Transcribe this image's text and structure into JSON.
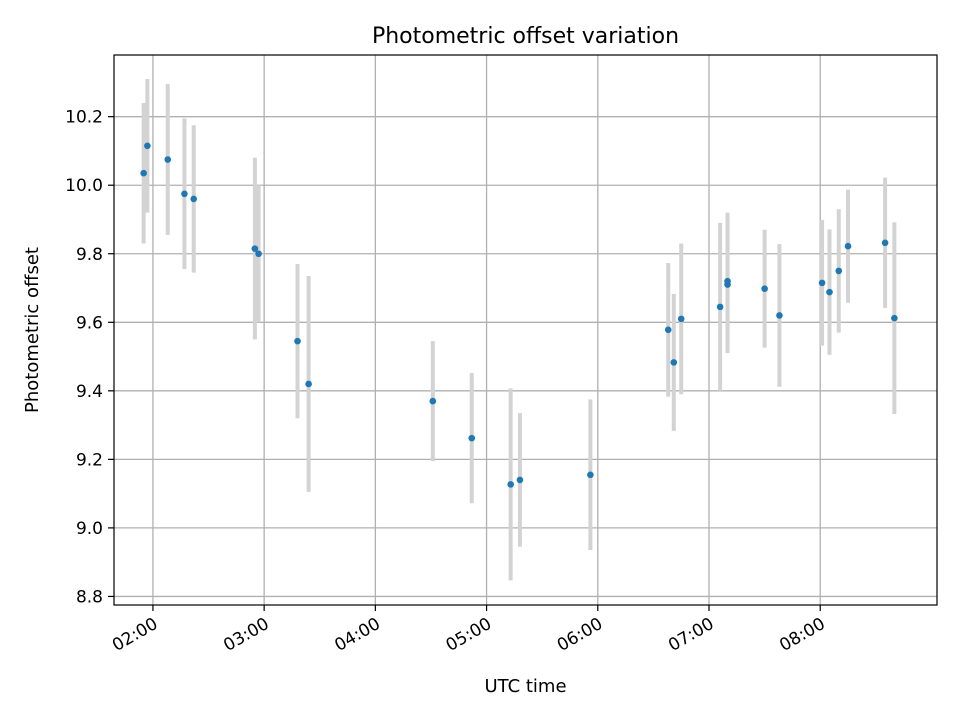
{
  "chart_data": {
    "type": "scatter",
    "title": "Photometric offset variation",
    "xlabel": "UTC time",
    "ylabel": "Photometric offset",
    "grid": true,
    "xlim": [
      "01:39",
      "09:03"
    ],
    "ylim": [
      8.775,
      10.38
    ],
    "x_ticks": [
      "02:00",
      "03:00",
      "04:00",
      "05:00",
      "06:00",
      "07:00",
      "08:00"
    ],
    "y_ticks": [
      8.8,
      9.0,
      9.2,
      9.4,
      9.6,
      9.8,
      10.0,
      10.2
    ],
    "y_tick_labels": [
      "8.8",
      "9.0",
      "9.2",
      "9.4",
      "9.6",
      "9.8",
      "10.0",
      "10.2"
    ],
    "colors": {
      "points": "#1f77b4",
      "errorbars": "#d3d3d3",
      "grid": "#b0b0b0"
    },
    "series": [
      {
        "points": [
          {
            "x": "01:55",
            "y": 10.035,
            "err": 0.205
          },
          {
            "x": "01:57",
            "y": 10.115,
            "err": 0.195
          },
          {
            "x": "02:08",
            "y": 10.075,
            "err": 0.22
          },
          {
            "x": "02:17",
            "y": 9.975,
            "err": 0.22
          },
          {
            "x": "02:22",
            "y": 9.96,
            "err": 0.215
          },
          {
            "x": "02:55",
            "y": 9.815,
            "err": 0.265
          },
          {
            "x": "02:57",
            "y": 9.8,
            "err": 0.2
          },
          {
            "x": "03:18",
            "y": 9.545,
            "err": 0.225
          },
          {
            "x": "03:24",
            "y": 9.42,
            "err": 0.315
          },
          {
            "x": "04:31",
            "y": 9.37,
            "err": 0.175
          },
          {
            "x": "04:52",
            "y": 9.262,
            "err": 0.19
          },
          {
            "x": "05:13",
            "y": 9.127,
            "err": 0.28
          },
          {
            "x": "05:18",
            "y": 9.14,
            "err": 0.195
          },
          {
            "x": "05:56",
            "y": 9.155,
            "err": 0.22
          },
          {
            "x": "06:38",
            "y": 9.578,
            "err": 0.195
          },
          {
            "x": "06:41",
            "y": 9.483,
            "err": 0.2
          },
          {
            "x": "06:45",
            "y": 9.61,
            "err": 0.22
          },
          {
            "x": "07:06",
            "y": 9.645,
            "err": 0.245
          },
          {
            "x": "07:10",
            "y": 9.71,
            "err": 0.2
          },
          {
            "x": "07:10",
            "y": 9.72,
            "err": 0.2
          },
          {
            "x": "07:30",
            "y": 9.698,
            "err": 0.172
          },
          {
            "x": "07:38",
            "y": 9.62,
            "err": 0.208
          },
          {
            "x": "08:01",
            "y": 9.715,
            "err": 0.183
          },
          {
            "x": "08:05",
            "y": 9.688,
            "err": 0.183
          },
          {
            "x": "08:10",
            "y": 9.75,
            "err": 0.18
          },
          {
            "x": "08:15",
            "y": 9.822,
            "err": 0.165
          },
          {
            "x": "08:35",
            "y": 9.832,
            "err": 0.19
          },
          {
            "x": "08:40",
            "y": 9.612,
            "err": 0.28
          }
        ]
      }
    ]
  }
}
